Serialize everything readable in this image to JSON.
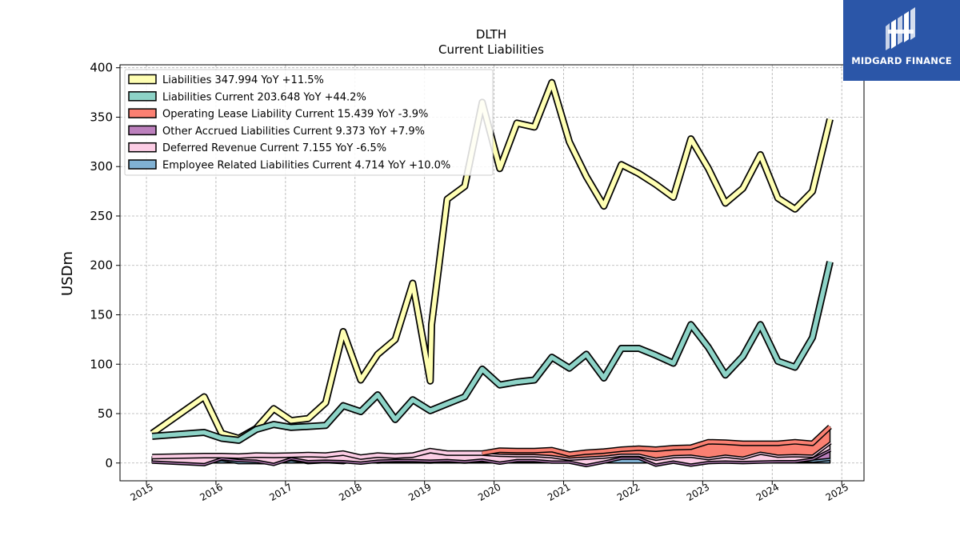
{
  "chart_data": {
    "type": "area",
    "title": "DLTH",
    "subtitle": "Current  Liabilities",
    "ylabel": "USDm",
    "xlabel": "",
    "ylim": [
      -18,
      403
    ],
    "xlim": [
      2014.62,
      2025.32
    ],
    "yticks": [
      0,
      50,
      100,
      150,
      200,
      250,
      300,
      350,
      400
    ],
    "xticks": [
      "2015",
      "2016",
      "2017",
      "2018",
      "2019",
      "2020",
      "2021",
      "2022",
      "2023",
      "2024",
      "2025"
    ],
    "grid": true,
    "legend_position": "top-left",
    "stacked_series": [
      {
        "name": "Employee Related Liabilities Current",
        "legend": "Employee Related Liabilities Current  4.714 YoY +10.0%",
        "color": "#80b1d3",
        "x": [
          "2015-01-31",
          "2015-10-31",
          "2016-01-31",
          "2016-04-30",
          "2016-07-31",
          "2016-10-31",
          "2017-01-31",
          "2017-04-30",
          "2017-07-31",
          "2017-10-31",
          "2018-01-31",
          "2018-04-30",
          "2018-07-31",
          "2018-10-31",
          "2019-01-31",
          "2019-04-30",
          "2019-07-31",
          "2019-10-31",
          "2020-01-31",
          "2020-04-30",
          "2020-07-31",
          "2020-10-31",
          "2021-01-31",
          "2021-04-30",
          "2021-07-31",
          "2021-10-31",
          "2022-01-31",
          "2022-04-30",
          "2022-07-31",
          "2022-10-31",
          "2023-01-31",
          "2023-04-30",
          "2023-07-31",
          "2023-10-31",
          "2024-01-31",
          "2024-04-30",
          "2024-07-31",
          "2024-10-31"
        ],
        "values": [
          4.0,
          1.5,
          4.5,
          1.5,
          1.5,
          1.2,
          4.5,
          1.5,
          2.5,
          1.5,
          5.5,
          2.0,
          3.0,
          2.5,
          2.0,
          3.0,
          2.0,
          3.0,
          2.0,
          3.0,
          3.0,
          5.0,
          9.0,
          7.5,
          7.0,
          9.0,
          10.0,
          4.0,
          3.5,
          5.0,
          2.0,
          3.0,
          2.0,
          4.0,
          2.5,
          4.0,
          3.0,
          4.714
        ]
      },
      {
        "name": "Other Accrued Liabilities Current",
        "legend": "Other Accrued Liabilities Current  9.373 YoY +7.9%",
        "color": "#bc80bd",
        "x": [
          "2015-01-31",
          "2015-10-31",
          "2016-01-31",
          "2016-04-30",
          "2016-07-31",
          "2016-10-31",
          "2017-01-31",
          "2017-04-30",
          "2017-07-31",
          "2017-10-31",
          "2018-01-31",
          "2018-04-30",
          "2018-07-31",
          "2018-10-31",
          "2019-01-31",
          "2019-04-30",
          "2019-07-31",
          "2019-10-31",
          "2020-01-31",
          "2020-04-30",
          "2020-07-31",
          "2020-10-31",
          "2021-01-31",
          "2021-04-30",
          "2021-07-31",
          "2021-10-31",
          "2022-01-31",
          "2022-04-30",
          "2022-07-31",
          "2022-10-31",
          "2023-01-31",
          "2023-04-30",
          "2023-07-31",
          "2023-10-31",
          "2024-01-31",
          "2024-04-30",
          "2024-07-31",
          "2024-10-31"
        ],
        "values": [
          -2.0,
          -2.0,
          1.0,
          2.0,
          1.5,
          -1.5,
          1.0,
          1.0,
          0.5,
          1.0,
          -4.5,
          1.0,
          0.5,
          1.0,
          1.0,
          0.5,
          0.5,
          1.0,
          -1.0,
          0.5,
          0.5,
          -3.0,
          -7.0,
          -9.0,
          -5.0,
          -3.0,
          -4.0,
          -5.0,
          -1.5,
          -6.0,
          -0.5,
          -1.0,
          -0.5,
          -2.0,
          0.0,
          -1.5,
          2.0,
          9.373
        ]
      },
      {
        "name": "Deferred Revenue Current",
        "legend": "Deferred Revenue Current  7.155 YoY -6.5%",
        "color": "#fccde5",
        "x": [
          "2015-01-31",
          "2015-10-31",
          "2016-01-31",
          "2016-04-30",
          "2016-07-31",
          "2016-10-31",
          "2017-01-31",
          "2017-04-30",
          "2017-07-31",
          "2017-10-31",
          "2018-01-31",
          "2018-04-30",
          "2018-07-31",
          "2018-10-31",
          "2019-01-31",
          "2019-04-30",
          "2019-07-31",
          "2019-10-31",
          "2020-01-31",
          "2020-04-30",
          "2020-07-31",
          "2020-10-31",
          "2021-01-31",
          "2021-04-30",
          "2021-07-31",
          "2021-10-31",
          "2022-01-31",
          "2022-04-30",
          "2022-07-31",
          "2022-10-31",
          "2023-01-31",
          "2023-04-30",
          "2023-07-31",
          "2023-10-31",
          "2024-01-31",
          "2024-04-30",
          "2024-07-31",
          "2024-10-31"
        ],
        "values": [
          4.5,
          8.0,
          2.0,
          3.5,
          5.0,
          8.0,
          2.5,
          6.0,
          5.0,
          7.5,
          5.0,
          5.0,
          3.5,
          4.5,
          9.5,
          6.5,
          7.5,
          6.0,
          8.0,
          5.0,
          5.0,
          5.5,
          3.0,
          7.5,
          5.0,
          3.0,
          3.0,
          6.0,
          5.5,
          9.0,
          4.0,
          6.0,
          4.5,
          9.0,
          5.5,
          6.0,
          3.0,
          7.155
        ]
      },
      {
        "name": "Operating Lease Liability Current",
        "legend": "Operating Lease Liability Current  15.439 YoY -3.9%",
        "color": "#fb8072",
        "x": [
          "2019-10-31",
          "2020-01-31",
          "2020-04-30",
          "2020-07-31",
          "2020-10-31",
          "2021-01-31",
          "2021-04-30",
          "2021-07-31",
          "2021-10-31",
          "2022-01-31",
          "2022-04-30",
          "2022-07-31",
          "2022-10-31",
          "2023-01-31",
          "2023-04-30",
          "2023-07-31",
          "2023-10-31",
          "2024-01-31",
          "2024-04-30",
          "2024-07-31",
          "2024-10-31"
        ],
        "values": [
          0.0,
          4.0,
          4.0,
          4.0,
          6.0,
          4.0,
          5.0,
          5.0,
          5.0,
          6.0,
          9.0,
          8.0,
          8.0,
          16.0,
          13.0,
          14.0,
          9.0,
          12.0,
          13.0,
          12.0,
          15.439
        ]
      }
    ],
    "line_series": [
      {
        "name": "Liabilities",
        "legend": "Liabilities  347.994 YoY +11.5%",
        "color": "#ffffb3",
        "x": [
          "2015-01-31",
          "2015-10-31",
          "2016-01-31",
          "2016-04-30",
          "2016-07-31",
          "2016-10-31",
          "2017-01-31",
          "2017-04-30",
          "2017-07-31",
          "2017-10-31",
          "2018-01-31",
          "2018-04-30",
          "2018-07-31",
          "2018-10-31",
          "2019-01-31",
          "2019-02-07",
          "2019-04-30",
          "2019-07-31",
          "2019-10-31",
          "2020-01-31",
          "2020-04-30",
          "2020-07-31",
          "2020-10-31",
          "2021-01-31",
          "2021-04-30",
          "2021-07-31",
          "2021-10-31",
          "2022-01-31",
          "2022-04-30",
          "2022-07-31",
          "2022-10-31",
          "2023-01-31",
          "2023-04-30",
          "2023-07-31",
          "2023-10-31",
          "2024-01-31",
          "2024-04-30",
          "2024-07-31",
          "2024-10-31"
        ],
        "values": [
          30,
          67,
          30,
          25,
          35,
          55,
          43,
          45,
          61,
          133,
          84,
          110,
          125,
          182,
          83,
          140,
          267,
          280,
          365,
          298,
          344,
          340,
          385,
          325,
          290,
          260,
          302,
          293,
          282,
          269,
          328,
          298,
          263,
          278,
          312,
          268,
          257,
          275,
          347.994
        ]
      },
      {
        "name": "Liabilities Current",
        "legend": "Liabilities Current  203.648 YoY +44.2%",
        "color": "#8dd3c7",
        "x": [
          "2015-01-31",
          "2015-10-31",
          "2016-01-31",
          "2016-04-30",
          "2016-07-31",
          "2016-10-31",
          "2017-01-31",
          "2017-04-30",
          "2017-07-31",
          "2017-10-31",
          "2018-01-31",
          "2018-04-30",
          "2018-07-31",
          "2018-10-31",
          "2019-01-31",
          "2019-04-30",
          "2019-07-31",
          "2019-10-31",
          "2020-01-31",
          "2020-04-30",
          "2020-07-31",
          "2020-10-31",
          "2021-01-31",
          "2021-04-30",
          "2021-07-31",
          "2021-10-31",
          "2022-01-31",
          "2022-04-30",
          "2022-07-31",
          "2022-10-31",
          "2023-01-31",
          "2023-04-30",
          "2023-07-31",
          "2023-10-31",
          "2024-01-31",
          "2024-04-30",
          "2024-07-31",
          "2024-10-31"
        ],
        "values": [
          27,
          31,
          25,
          23,
          34,
          39,
          36,
          37,
          38,
          58,
          52,
          69,
          44,
          64,
          53,
          60,
          67,
          95,
          79,
          82,
          84,
          107,
          96,
          110,
          86,
          116,
          116,
          109,
          101,
          140,
          117,
          89,
          108,
          140,
          103,
          97,
          127,
          203.648
        ]
      }
    ],
    "legend_order": [
      "Liabilities",
      "Liabilities Current",
      "Operating Lease Liability Current",
      "Other Accrued Liabilities Current",
      "Deferred Revenue Current",
      "Employee Related Liabilities Current"
    ]
  },
  "logo": {
    "text": "MIDGARD FINANCE"
  }
}
